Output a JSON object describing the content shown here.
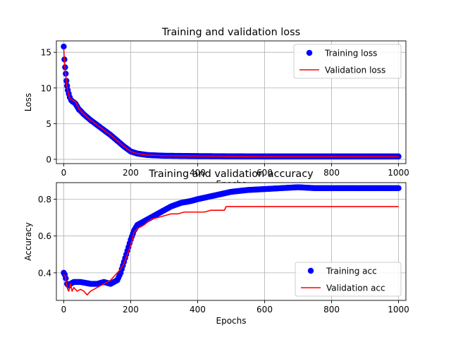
{
  "chart_data": [
    {
      "type": "line",
      "title": "Training and validation loss",
      "xlabel": "Epochs",
      "ylabel": "Loss",
      "xlim": [
        -22,
        1022
      ],
      "ylim": [
        -0.6,
        16.6
      ],
      "xticks": [
        0,
        200,
        400,
        600,
        800,
        1000
      ],
      "yticks": [
        0,
        5,
        10,
        15
      ],
      "grid": true,
      "legend": "top-right",
      "series": [
        {
          "name": "Training loss",
          "style": "points",
          "color": "#0000ff",
          "x": [
            0,
            2,
            4,
            6,
            8,
            10,
            12,
            15,
            18,
            22,
            26,
            30,
            35,
            40,
            45,
            50,
            60,
            70,
            80,
            100,
            120,
            140,
            160,
            180,
            200,
            220,
            250,
            300,
            400,
            500,
            600,
            700,
            800,
            900,
            1000
          ],
          "y": [
            15.8,
            14.0,
            12.9,
            12.0,
            11.0,
            10.3,
            9.7,
            9.2,
            8.7,
            8.3,
            8.1,
            8.0,
            7.8,
            7.4,
            7.0,
            6.8,
            6.3,
            5.9,
            5.5,
            4.8,
            4.1,
            3.4,
            2.6,
            1.8,
            1.1,
            0.8,
            0.6,
            0.5,
            0.45,
            0.42,
            0.4,
            0.4,
            0.4,
            0.4,
            0.4
          ]
        },
        {
          "name": "Validation loss",
          "style": "line",
          "color": "#ff0000",
          "x": [
            0,
            2,
            4,
            6,
            8,
            10,
            12,
            15,
            18,
            22,
            26,
            30,
            35,
            40,
            45,
            50,
            60,
            70,
            80,
            100,
            120,
            140,
            160,
            180,
            200,
            220,
            250,
            300,
            400,
            500,
            600,
            700,
            800,
            900,
            1000
          ],
          "y": [
            15.5,
            13.8,
            12.7,
            11.8,
            10.8,
            10.1,
            9.6,
            9.1,
            8.6,
            8.4,
            8.3,
            8.2,
            8.1,
            7.6,
            7.1,
            6.8,
            6.3,
            5.9,
            5.5,
            4.8,
            4.1,
            3.4,
            2.6,
            1.8,
            1.1,
            0.8,
            0.6,
            0.5,
            0.45,
            0.42,
            0.4,
            0.4,
            0.4,
            0.4,
            0.4
          ]
        }
      ]
    },
    {
      "type": "line",
      "title": "Training and validation accuracy",
      "xlabel": "Epochs",
      "ylabel": "Accuracy",
      "xlim": [
        -22,
        1022
      ],
      "ylim": [
        0.25,
        0.89
      ],
      "xticks": [
        0,
        200,
        400,
        600,
        800,
        1000
      ],
      "yticks": [
        0.4,
        0.6,
        0.8
      ],
      "grid": true,
      "legend": "bottom-right",
      "series": [
        {
          "name": "Training acc",
          "style": "points",
          "color": "#0000ff",
          "x": [
            0,
            3,
            6,
            10,
            15,
            20,
            30,
            50,
            80,
            100,
            120,
            140,
            160,
            170,
            180,
            190,
            200,
            210,
            220,
            240,
            260,
            280,
            300,
            320,
            350,
            380,
            400,
            450,
            500,
            550,
            600,
            650,
            700,
            750,
            800,
            900,
            1000
          ],
          "y": [
            0.4,
            0.39,
            0.37,
            0.34,
            0.33,
            0.34,
            0.35,
            0.35,
            0.34,
            0.34,
            0.35,
            0.34,
            0.36,
            0.4,
            0.46,
            0.52,
            0.58,
            0.63,
            0.66,
            0.68,
            0.7,
            0.72,
            0.74,
            0.76,
            0.78,
            0.79,
            0.8,
            0.82,
            0.84,
            0.85,
            0.855,
            0.86,
            0.865,
            0.86,
            0.86,
            0.86,
            0.86
          ]
        },
        {
          "name": "Validation acc",
          "style": "line",
          "color": "#ff0000",
          "x": [
            0,
            5,
            8,
            12,
            15,
            20,
            25,
            30,
            40,
            50,
            60,
            70,
            80,
            90,
            100,
            110,
            120,
            130,
            140,
            150,
            160,
            170,
            180,
            190,
            200,
            210,
            220,
            230,
            240,
            260,
            280,
            300,
            320,
            340,
            360,
            400,
            420,
            440,
            460,
            480,
            485,
            500,
            600,
            700,
            800,
            900,
            1000
          ],
          "y": [
            0.39,
            0.38,
            0.34,
            0.31,
            0.3,
            0.34,
            0.3,
            0.32,
            0.3,
            0.31,
            0.3,
            0.28,
            0.3,
            0.31,
            0.32,
            0.33,
            0.34,
            0.35,
            0.36,
            0.38,
            0.4,
            0.42,
            0.45,
            0.5,
            0.55,
            0.62,
            0.64,
            0.65,
            0.66,
            0.69,
            0.7,
            0.71,
            0.72,
            0.72,
            0.73,
            0.73,
            0.73,
            0.74,
            0.74,
            0.74,
            0.76,
            0.76,
            0.76,
            0.76,
            0.76,
            0.76,
            0.76
          ]
        }
      ]
    }
  ]
}
